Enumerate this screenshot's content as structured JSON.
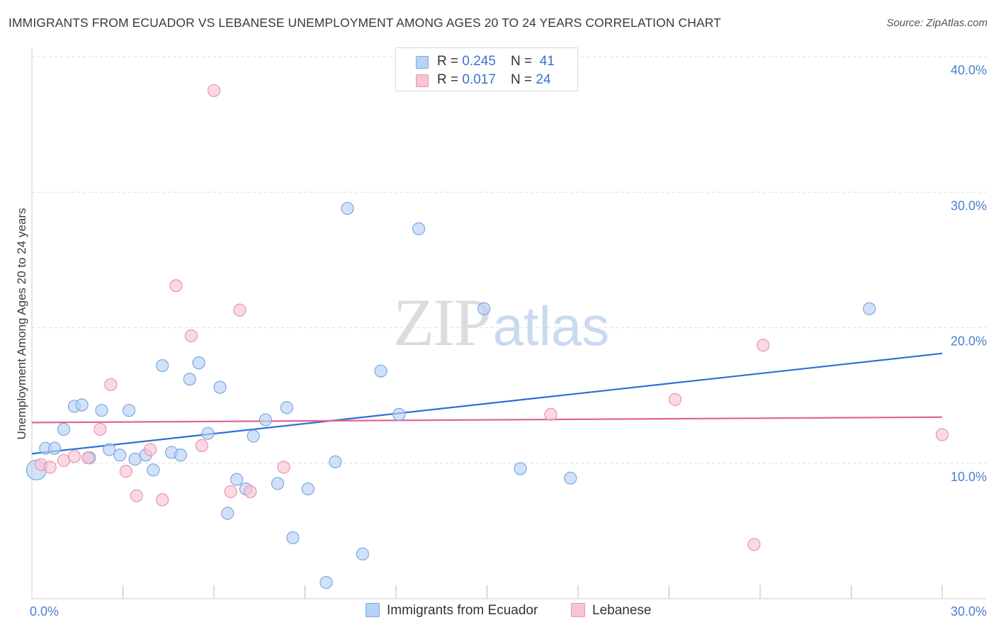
{
  "header": {
    "title": "IMMIGRANTS FROM ECUADOR VS LEBANESE UNEMPLOYMENT AMONG AGES 20 TO 24 YEARS CORRELATION CHART",
    "source": "Source: ZipAtlas.com"
  },
  "watermark": {
    "zip": "ZIP",
    "atlas": "atlas"
  },
  "legend": {
    "rows": [
      {
        "r_label": "R = ",
        "r_value": "0.245",
        "n_label": "N = ",
        "n_value": "41",
        "color": "#b8d3f5",
        "border": "#7aa7e0"
      },
      {
        "r_label": "R = ",
        "r_value": "0.017",
        "n_label": "N = ",
        "n_value": "24",
        "color": "#f9c4d4",
        "border": "#e994b0"
      }
    ]
  },
  "bottom_legend": {
    "items": [
      {
        "label": "Immigrants from Ecuador",
        "color": "#b8d3f5",
        "border": "#7aa7e0"
      },
      {
        "label": "Lebanese",
        "color": "#f9c4d4",
        "border": "#e994b0"
      }
    ]
  },
  "chart_data": {
    "type": "scatter",
    "title": "IMMIGRANTS FROM ECUADOR VS LEBANESE UNEMPLOYMENT AMONG AGES 20 TO 24 YEARS CORRELATION CHART",
    "xlabel": "",
    "ylabel": "Unemployment Among Ages 20 to 24 years",
    "xlim": [
      0,
      30
    ],
    "ylim": [
      0,
      40
    ],
    "x_tick_labels": [
      {
        "value": 0,
        "label": "0.0%"
      },
      {
        "value": 30,
        "label": "30.0%"
      }
    ],
    "y_tick_labels": [
      {
        "value": 10,
        "label": "10.0%"
      },
      {
        "value": 20,
        "label": "20.0%"
      },
      {
        "value": 30,
        "label": "30.0%"
      },
      {
        "value": 40,
        "label": "40.0%"
      }
    ],
    "grid": true,
    "series": [
      {
        "name": "Immigrants from Ecuador",
        "color": "#b8d3f5",
        "stroke": "#7aa7e0",
        "line_color": "#2f6fd6",
        "trend": {
          "x": [
            0,
            30
          ],
          "y": [
            10.7,
            18.1
          ]
        },
        "points": [
          [
            0.15,
            9.5,
            "large"
          ],
          [
            0.45,
            11.1
          ],
          [
            0.75,
            11.1
          ],
          [
            1.05,
            12.5
          ],
          [
            1.4,
            14.2
          ],
          [
            1.65,
            14.3
          ],
          [
            1.9,
            10.4
          ],
          [
            2.3,
            13.9
          ],
          [
            2.55,
            11.0
          ],
          [
            2.9,
            10.6
          ],
          [
            3.2,
            13.9
          ],
          [
            3.4,
            10.3
          ],
          [
            3.75,
            10.6
          ],
          [
            4.0,
            9.5
          ],
          [
            4.3,
            17.2
          ],
          [
            4.6,
            10.8
          ],
          [
            4.9,
            10.6
          ],
          [
            5.2,
            16.2
          ],
          [
            5.5,
            17.4
          ],
          [
            5.8,
            12.2
          ],
          [
            6.2,
            15.6
          ],
          [
            6.45,
            6.3
          ],
          [
            6.75,
            8.8
          ],
          [
            7.05,
            8.1
          ],
          [
            7.3,
            12.0
          ],
          [
            7.7,
            13.2
          ],
          [
            8.1,
            8.5
          ],
          [
            8.4,
            14.1
          ],
          [
            8.6,
            4.5
          ],
          [
            9.1,
            8.1
          ],
          [
            9.7,
            1.2
          ],
          [
            10.0,
            10.1
          ],
          [
            10.4,
            28.8
          ],
          [
            10.9,
            3.3
          ],
          [
            11.5,
            16.8
          ],
          [
            12.1,
            13.6
          ],
          [
            12.75,
            27.3
          ],
          [
            14.9,
            21.4
          ],
          [
            16.1,
            9.6
          ],
          [
            17.75,
            8.9
          ],
          [
            27.6,
            21.4
          ]
        ]
      },
      {
        "name": "Lebanese",
        "color": "#f9c4d4",
        "stroke": "#e994b0",
        "line_color": "#e26592",
        "trend": {
          "x": [
            0,
            30
          ],
          "y": [
            13.0,
            13.4
          ]
        },
        "points": [
          [
            0.3,
            9.9
          ],
          [
            0.6,
            9.7
          ],
          [
            1.05,
            10.2
          ],
          [
            1.4,
            10.5
          ],
          [
            1.85,
            10.4
          ],
          [
            2.25,
            12.5
          ],
          [
            2.6,
            15.8
          ],
          [
            3.1,
            9.4
          ],
          [
            3.45,
            7.6
          ],
          [
            3.9,
            11.0
          ],
          [
            4.3,
            7.3
          ],
          [
            4.75,
            23.1
          ],
          [
            5.25,
            19.4
          ],
          [
            5.6,
            11.3
          ],
          [
            6.0,
            37.5
          ],
          [
            6.55,
            7.9
          ],
          [
            6.85,
            21.3
          ],
          [
            7.2,
            7.9
          ],
          [
            8.3,
            9.7
          ],
          [
            17.1,
            13.6
          ],
          [
            21.2,
            14.7
          ],
          [
            23.8,
            4.0
          ],
          [
            24.1,
            18.7
          ],
          [
            30.0,
            12.1
          ]
        ]
      }
    ]
  }
}
